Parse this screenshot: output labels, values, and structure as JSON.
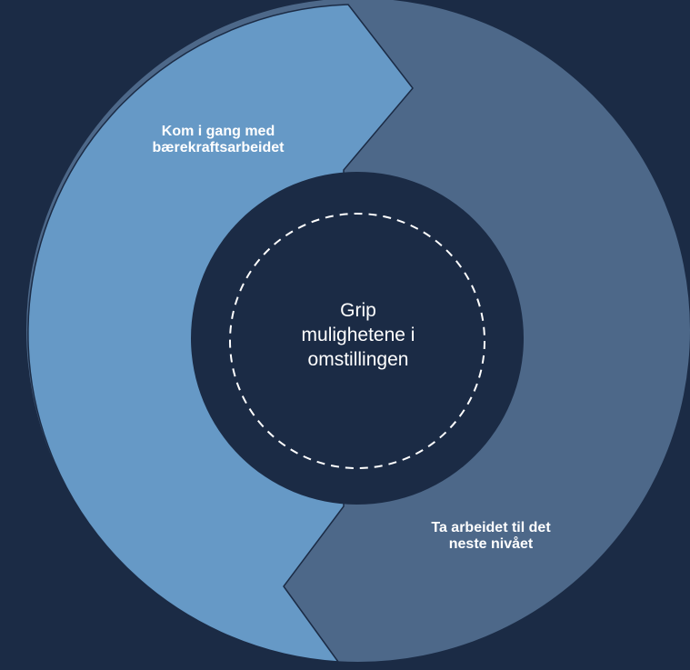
{
  "diagram": {
    "background_color": "#1b2b45",
    "segments": [
      {
        "lines": [
          "Kom i gang med",
          "bærekraftsarbeidet"
        ],
        "color": "#6699c6"
      },
      {
        "lines": [
          "Ta arbeidet til det",
          "neste nivået"
        ],
        "color": "#4d6889"
      }
    ],
    "center": {
      "lines": [
        "Grip",
        "mulighetene i",
        "omstillingen"
      ],
      "fill_color": "#1b2b45",
      "ring_color": "#ffffff"
    }
  }
}
